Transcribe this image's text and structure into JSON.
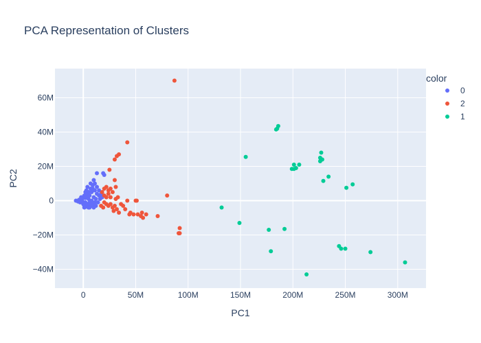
{
  "chart_data": {
    "type": "scatter",
    "title": "PCA Representation of Clusters",
    "xlabel": "PC1",
    "ylabel": "PC2",
    "xlim": [
      -27000000,
      327000000
    ],
    "ylim": [
      -51000000,
      77000000
    ],
    "x_ticks": [
      {
        "value": 0,
        "label": "0"
      },
      {
        "value": 50000000,
        "label": "50M"
      },
      {
        "value": 100000000,
        "label": "100M"
      },
      {
        "value": 150000000,
        "label": "150M"
      },
      {
        "value": 200000000,
        "label": "200M"
      },
      {
        "value": 250000000,
        "label": "250M"
      },
      {
        "value": 300000000,
        "label": "300M"
      }
    ],
    "y_ticks": [
      {
        "value": -40000000,
        "label": "−40M"
      },
      {
        "value": -20000000,
        "label": "−20M"
      },
      {
        "value": 0,
        "label": "0"
      },
      {
        "value": 20000000,
        "label": "20M"
      },
      {
        "value": 40000000,
        "label": "40M"
      },
      {
        "value": 60000000,
        "label": "60M"
      }
    ],
    "grid": true,
    "plot_background": "#e5ecf6",
    "legend": {
      "title": "color",
      "placement": "right"
    },
    "series": [
      {
        "name": "0",
        "color": "#636efa",
        "points": [
          [
            -7000000,
            0
          ],
          [
            -5000000,
            -500000
          ],
          [
            -4000000,
            500000
          ],
          [
            -3000000,
            -1000000
          ],
          [
            -2000000,
            1000000
          ],
          [
            -1000000,
            0
          ],
          [
            0,
            -2000000
          ],
          [
            0,
            2000000
          ],
          [
            1000000,
            -3000000
          ],
          [
            1000000,
            3000000
          ],
          [
            2000000,
            -1000000
          ],
          [
            2000000,
            1500000
          ],
          [
            3000000,
            -3500000
          ],
          [
            3000000,
            4000000
          ],
          [
            4000000,
            -2000000
          ],
          [
            4000000,
            2000000
          ],
          [
            5000000,
            -4000000
          ],
          [
            5000000,
            5000000
          ],
          [
            6000000,
            -1000000
          ],
          [
            6000000,
            3000000
          ],
          [
            7000000,
            -3000000
          ],
          [
            7000000,
            7000000
          ],
          [
            8000000,
            0
          ],
          [
            8000000,
            5000000
          ],
          [
            9000000,
            -2000000
          ],
          [
            9000000,
            9000000
          ],
          [
            10000000,
            -4000000
          ],
          [
            10000000,
            2000000
          ],
          [
            11000000,
            6000000
          ],
          [
            11000000,
            10000000
          ],
          [
            12000000,
            -3000000
          ],
          [
            12000000,
            1000000
          ],
          [
            13000000,
            4000000
          ],
          [
            13000000,
            8000000
          ],
          [
            14000000,
            -1000000
          ],
          [
            15000000,
            3000000
          ],
          [
            15000000,
            6000000
          ],
          [
            16000000,
            1000000
          ],
          [
            17000000,
            4000000
          ],
          [
            18000000,
            2000000
          ],
          [
            19000000,
            16000000
          ],
          [
            20000000,
            15000000
          ],
          [
            13000000,
            16000000
          ],
          [
            2000000,
            5000000
          ],
          [
            -2000000,
            2000000
          ],
          [
            1000000,
            -4000000
          ],
          [
            3000000,
            6000000
          ],
          [
            6000000,
            -4000000
          ],
          [
            9000000,
            7000000
          ],
          [
            5000000,
            1000000
          ],
          [
            10000000,
            12000000
          ],
          [
            7000000,
            10000000
          ],
          [
            4000000,
            8000000
          ],
          [
            11000000,
            -1000000
          ],
          [
            8000000,
            -3000000
          ]
        ]
      },
      {
        "name": "2",
        "color": "#ef553b",
        "points": [
          [
            87000000,
            70000000
          ],
          [
            42000000,
            34000000
          ],
          [
            34000000,
            27000000
          ],
          [
            32000000,
            26000000
          ],
          [
            30000000,
            24000000
          ],
          [
            25000000,
            18000000
          ],
          [
            30000000,
            12000000
          ],
          [
            31000000,
            8000000
          ],
          [
            20000000,
            7000000
          ],
          [
            22000000,
            8000000
          ],
          [
            24000000,
            6000000
          ],
          [
            26000000,
            7000000
          ],
          [
            28000000,
            5000000
          ],
          [
            18000000,
            5000000
          ],
          [
            20000000,
            3000000
          ],
          [
            22000000,
            2000000
          ],
          [
            24000000,
            4000000
          ],
          [
            26000000,
            2000000
          ],
          [
            33000000,
            2000000
          ],
          [
            31000000,
            1000000
          ],
          [
            20000000,
            -1000000
          ],
          [
            22000000,
            -2000000
          ],
          [
            24000000,
            -3000000
          ],
          [
            26000000,
            -2000000
          ],
          [
            28000000,
            -4000000
          ],
          [
            30000000,
            -3000000
          ],
          [
            32000000,
            -5000000
          ],
          [
            34000000,
            -7000000
          ],
          [
            19000000,
            -4000000
          ],
          [
            17000000,
            -3000000
          ],
          [
            38000000,
            -3000000
          ],
          [
            42000000,
            0
          ],
          [
            51000000,
            0
          ],
          [
            50000000,
            0
          ],
          [
            45000000,
            -7000000
          ],
          [
            48000000,
            -8000000
          ],
          [
            52000000,
            -8000000
          ],
          [
            55000000,
            -9000000
          ],
          [
            57000000,
            -10000000
          ],
          [
            60000000,
            -8000000
          ],
          [
            44000000,
            -8000000
          ],
          [
            56000000,
            -7000000
          ],
          [
            71000000,
            -9000000
          ],
          [
            80000000,
            3000000
          ],
          [
            92000000,
            -16000000
          ],
          [
            91000000,
            -19000000
          ],
          [
            92000000,
            -19000000
          ],
          [
            36000000,
            -2000000
          ],
          [
            40000000,
            -5000000
          ],
          [
            29000000,
            -6000000
          ]
        ]
      },
      {
        "name": "1",
        "color": "#00cc96",
        "points": [
          [
            186000000,
            43500000
          ],
          [
            184000000,
            41500000
          ],
          [
            185000000,
            42000000
          ],
          [
            155000000,
            25500000
          ],
          [
            227000000,
            28000000
          ],
          [
            226000000,
            25000000
          ],
          [
            228000000,
            24000000
          ],
          [
            226000000,
            23000000
          ],
          [
            206000000,
            21000000
          ],
          [
            201000000,
            21000000
          ],
          [
            203000000,
            19000000
          ],
          [
            199000000,
            18500000
          ],
          [
            201000000,
            18500000
          ],
          [
            234000000,
            14000000
          ],
          [
            229000000,
            11500000
          ],
          [
            257000000,
            9500000
          ],
          [
            251000000,
            7500000
          ],
          [
            132000000,
            -4000000
          ],
          [
            149000000,
            -13000000
          ],
          [
            177000000,
            -17000000
          ],
          [
            192000000,
            -16500000
          ],
          [
            179000000,
            -29500000
          ],
          [
            244000000,
            -26500000
          ],
          [
            246000000,
            -28000000
          ],
          [
            250000000,
            -28000000
          ],
          [
            274000000,
            -30000000
          ],
          [
            307000000,
            -36000000
          ],
          [
            213000000,
            -43000000
          ]
        ]
      }
    ]
  }
}
